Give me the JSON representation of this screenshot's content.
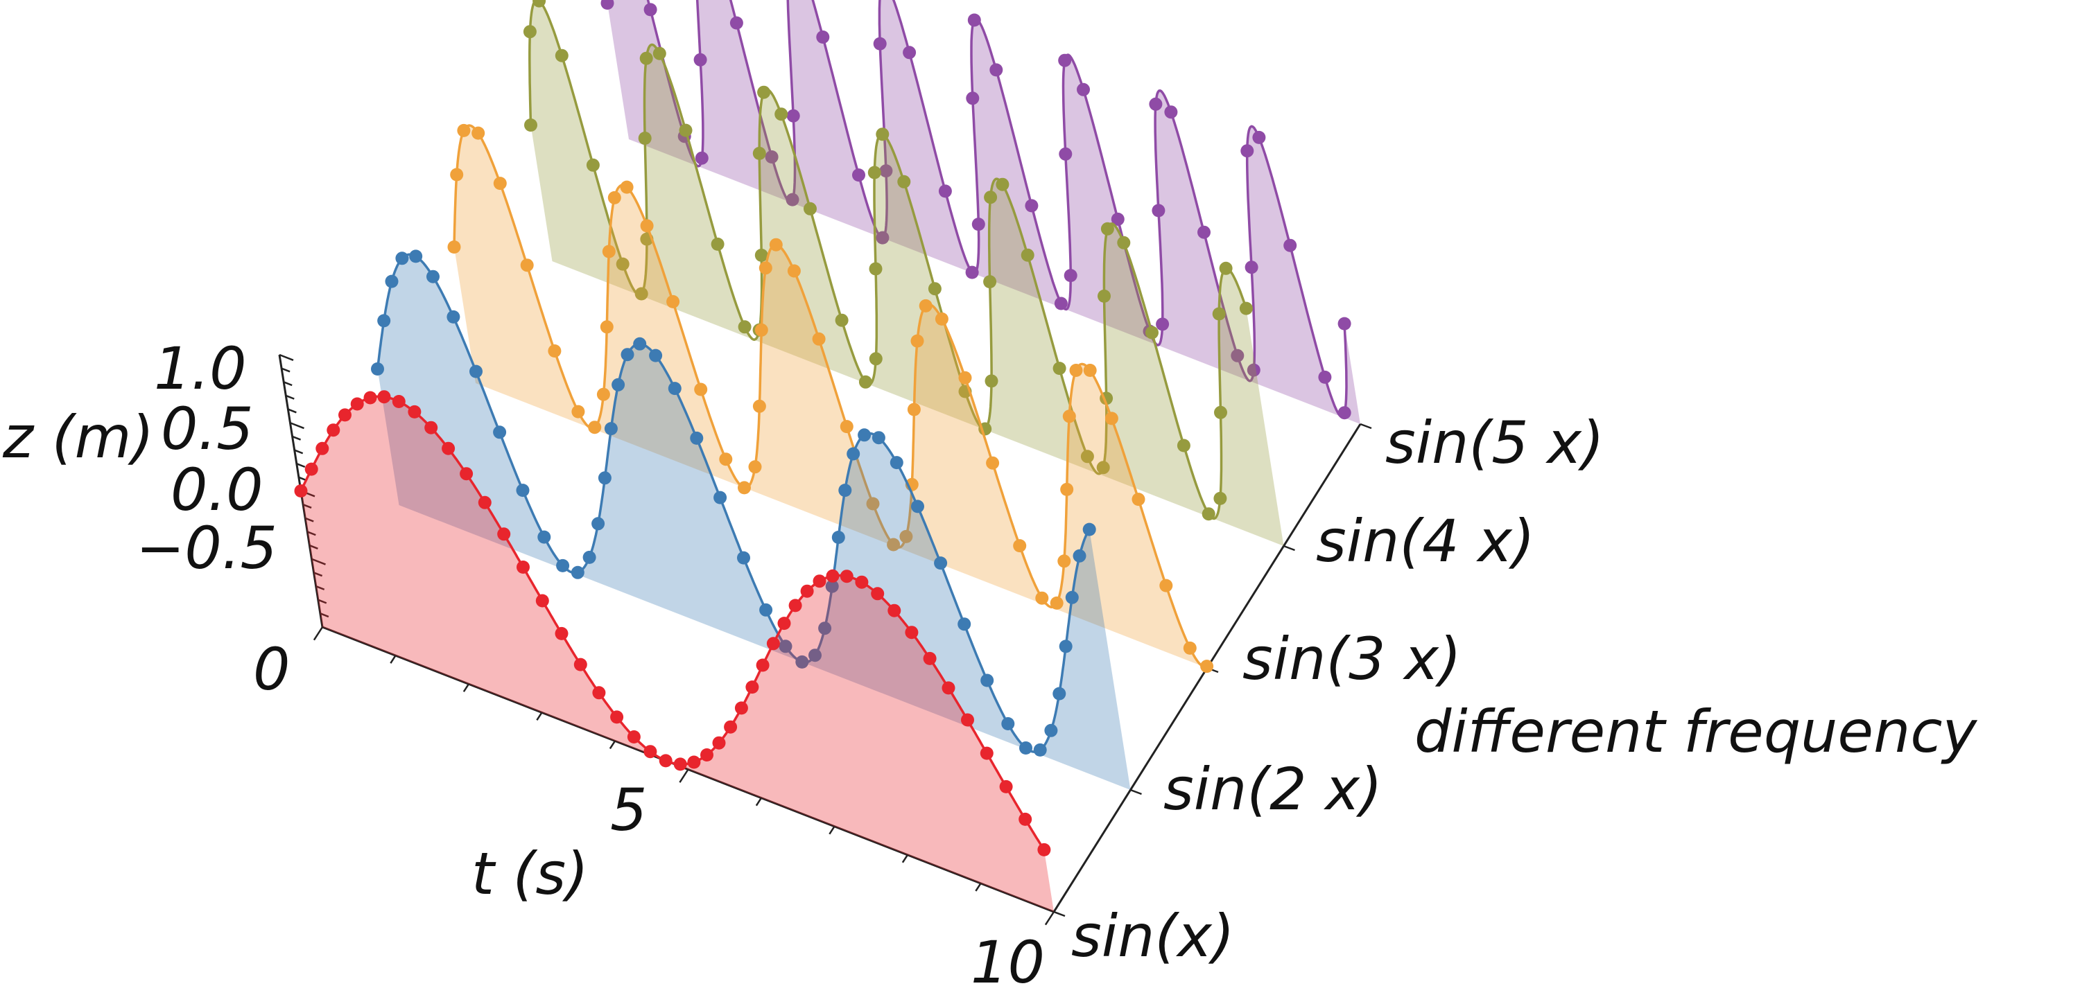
{
  "chart_data": {
    "type": "line",
    "subtype": "3d-waterfall",
    "title": "",
    "x_axis": {
      "label": "t (s)",
      "range": [
        0,
        10
      ],
      "ticks": [
        0,
        5,
        10
      ],
      "tick_labels": [
        "0",
        "5",
        "10"
      ]
    },
    "y_axis": {
      "label": "different frequency",
      "categories": [
        "sin(x)",
        "sin(2x)",
        "sin(3x)",
        "sin(4x)",
        "sin(5x)"
      ],
      "category_labels": [
        "sin(x)",
        "sin(2 x)",
        "sin(3 x)",
        "sin(4 x)",
        "sin(5 x)"
      ]
    },
    "z_axis": {
      "label": "z (m)",
      "range": [
        -1,
        1
      ],
      "ticks": [
        -0.5,
        0.0,
        0.5,
        1.0
      ],
      "tick_labels": [
        "−0.5",
        "0.0",
        "0.5",
        "1.0"
      ]
    },
    "series": [
      {
        "name": "sin(x)",
        "frequency": 1,
        "color": "#e8252d",
        "points": 50,
        "x_range": [
          0,
          10
        ]
      },
      {
        "name": "sin(2x)",
        "frequency": 2,
        "color": "#3d7bb3",
        "points": 50,
        "x_range": [
          0,
          10
        ]
      },
      {
        "name": "sin(3x)",
        "frequency": 3,
        "color": "#f0a13a",
        "points": 50,
        "x_range": [
          0,
          10
        ]
      },
      {
        "name": "sin(4x)",
        "frequency": 4,
        "color": "#969b3f",
        "points": 50,
        "x_range": [
          0,
          10
        ]
      },
      {
        "name": "sin(5x)",
        "frequency": 5,
        "color": "#8f4ba6",
        "points": 50,
        "x_range": [
          0,
          10
        ]
      }
    ],
    "marker": "circle",
    "fill": "below-curve",
    "grid": false,
    "legend": "none"
  }
}
